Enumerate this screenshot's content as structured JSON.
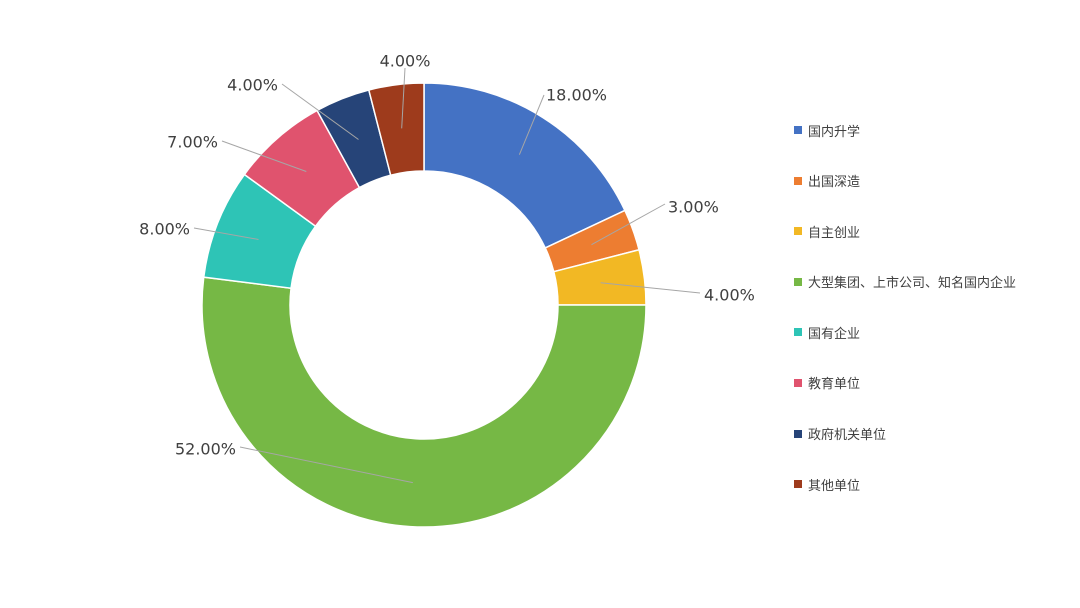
{
  "chart_data": {
    "type": "pie",
    "variant": "doughnut",
    "title": "",
    "legend_position": "right",
    "categories": [
      "国内升学",
      "出国深造",
      "自主创业",
      "大型集团、上市公司、知名国内企业",
      "国有企业",
      "教育单位",
      "政府机关单位",
      "其他单位"
    ],
    "values": [
      18,
      3,
      4,
      52,
      8,
      7,
      4,
      4
    ],
    "labels": [
      "18.00%",
      "3.00%",
      "4.00%",
      "52.00%",
      "8.00%",
      "7.00%",
      "4.00%",
      "4.00%"
    ],
    "colors": [
      "#4472c4",
      "#ed7d31",
      "#f2b824",
      "#76b845",
      "#2ec4b6",
      "#e0536e",
      "#264478",
      "#9e3b1c"
    ]
  }
}
